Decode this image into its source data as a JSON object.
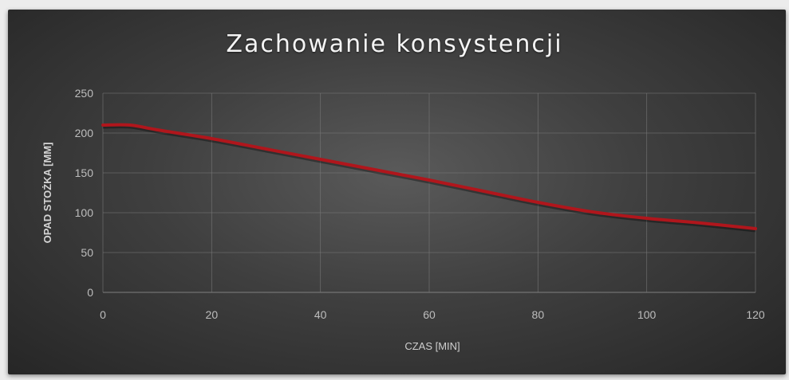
{
  "chart_data": {
    "type": "line",
    "title": "Zachowanie konsystencji",
    "xlabel": "CZAS [MIN]",
    "ylabel": "OPAD STOŻKA [MM]",
    "xlim": [
      0,
      120
    ],
    "ylim": [
      0,
      250
    ],
    "xticks": [
      "0",
      "20",
      "40",
      "60",
      "80",
      "100",
      "120"
    ],
    "yticks": [
      "0",
      "50",
      "100",
      "150",
      "200",
      "250"
    ],
    "grid": true,
    "legend": "none",
    "series": [
      {
        "color": "#b0161c",
        "x": [
          0,
          5,
          10,
          20,
          30,
          40,
          50,
          60,
          70,
          80,
          90,
          100,
          110,
          120
        ],
        "y": [
          210,
          210,
          204,
          193,
          180,
          167,
          154,
          141,
          127,
          113,
          101,
          93,
          87,
          80
        ]
      }
    ]
  }
}
